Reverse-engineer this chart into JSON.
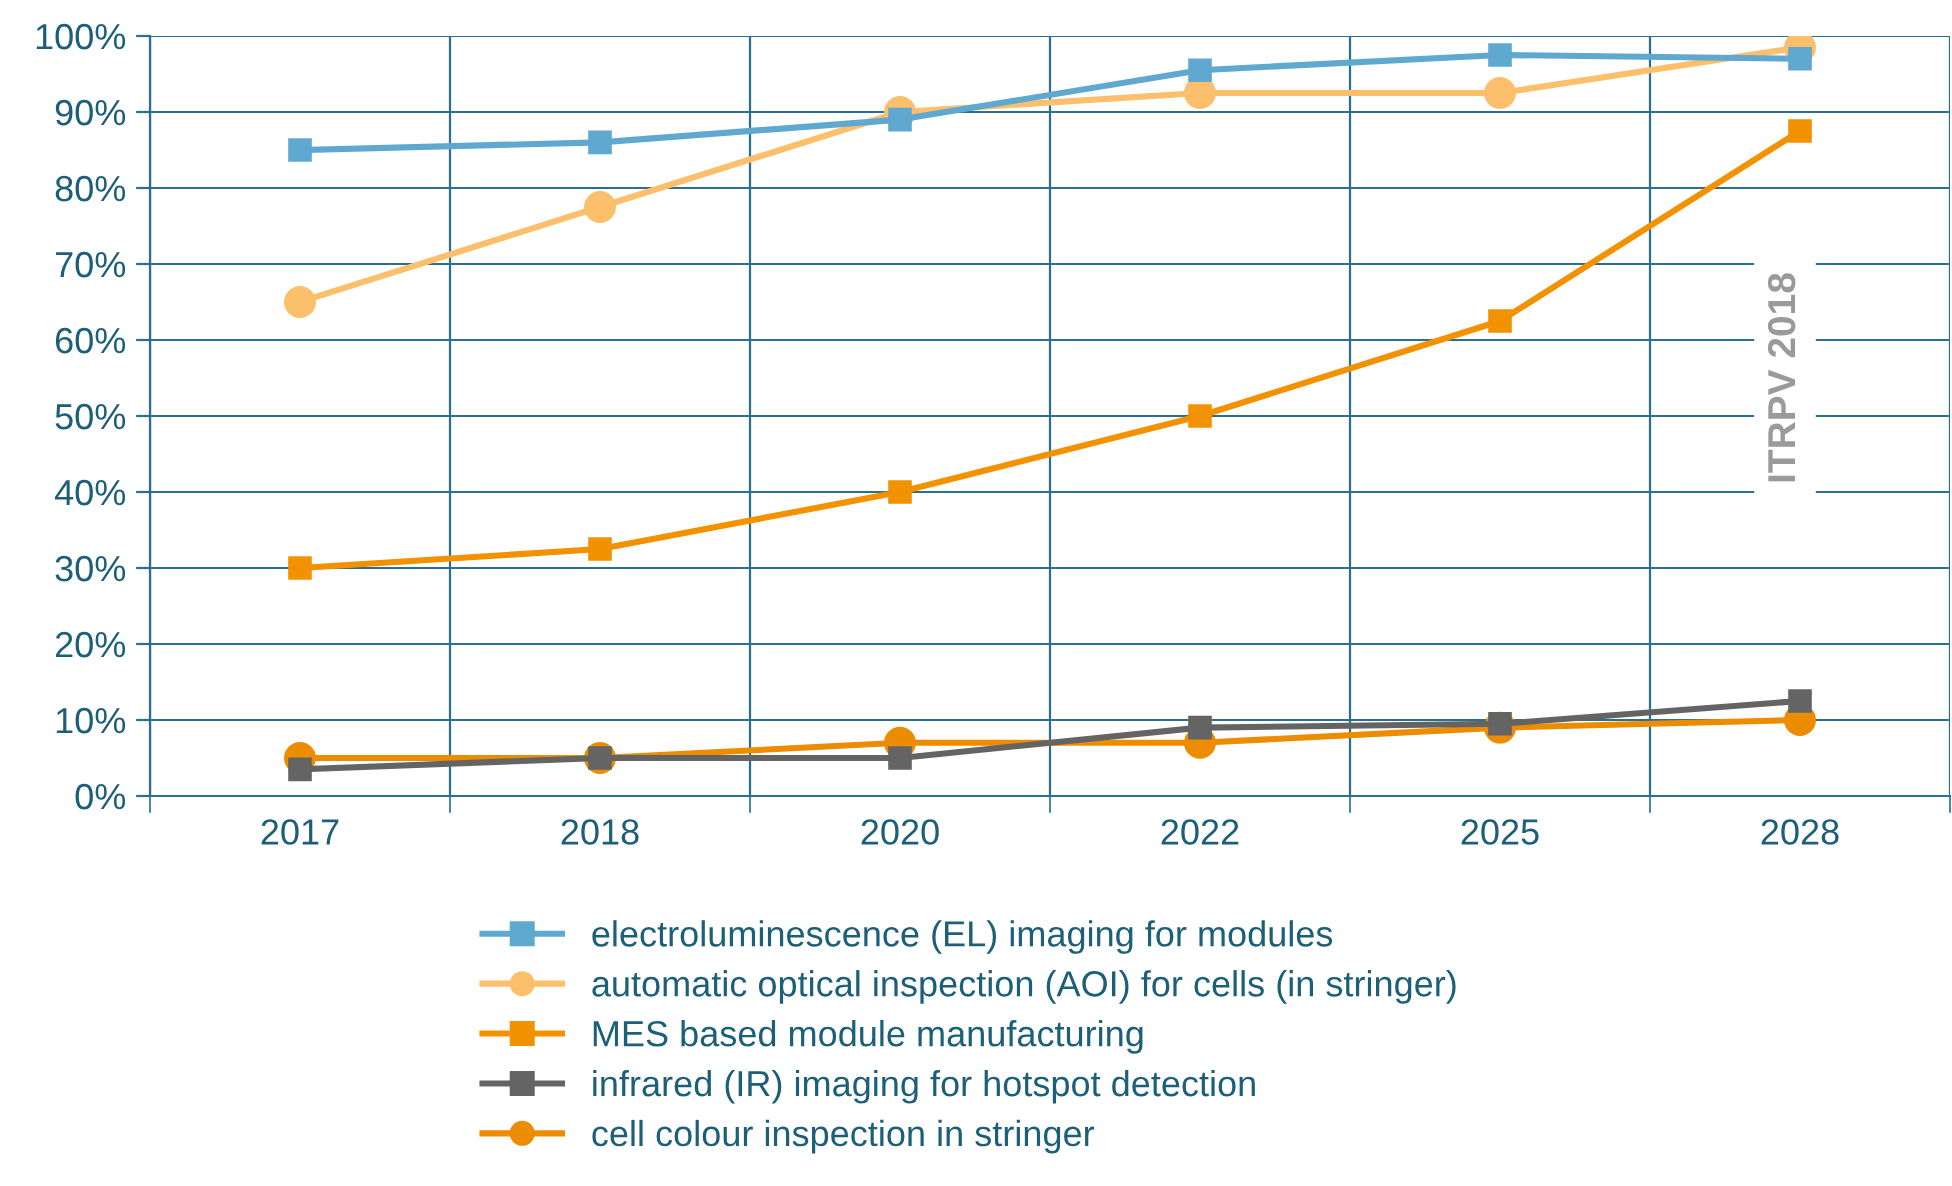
{
  "chart_data": {
    "type": "line",
    "categories": [
      "2017",
      "2018",
      "2020",
      "2022",
      "2025",
      "2028"
    ],
    "series": [
      {
        "name": "electroluminescence (EL) imaging for modules",
        "color": "#5fa8cf",
        "marker": "square",
        "values": [
          85,
          86,
          89,
          95.5,
          97.5,
          97
        ]
      },
      {
        "name": "automatic optical inspection (AOI) for cells (in stringer)",
        "color": "#fcbf6b",
        "marker": "circle",
        "values": [
          65,
          77.5,
          90,
          92.5,
          92.5,
          98.5
        ]
      },
      {
        "name": "MES based module manufacturing",
        "color": "#f39200",
        "marker": "square",
        "values": [
          30,
          32.5,
          40,
          50,
          62.5,
          87.5
        ]
      },
      {
        "name": "infrared (IR) imaging for hotspot detection",
        "color": "#646464",
        "marker": "square",
        "values": [
          3.5,
          5,
          5,
          9,
          9.5,
          12.5
        ]
      },
      {
        "name": "cell colour inspection in stringer",
        "color": "#ec8c00",
        "marker": "circle",
        "values": [
          5,
          5,
          7,
          7,
          9,
          10
        ]
      }
    ],
    "ylim": [
      0,
      100
    ],
    "yticks": [
      {
        "value": 0,
        "label": "0%"
      },
      {
        "value": 10,
        "label": "10%"
      },
      {
        "value": 20,
        "label": "20%"
      },
      {
        "value": 30,
        "label": "30%"
      },
      {
        "value": 40,
        "label": "40%"
      },
      {
        "value": 50,
        "label": "50%"
      },
      {
        "value": 60,
        "label": "60%"
      },
      {
        "value": 70,
        "label": "70%"
      },
      {
        "value": 80,
        "label": "80%"
      },
      {
        "value": 90,
        "label": "90%"
      },
      {
        "value": 100,
        "label": "100%"
      }
    ],
    "grid": true,
    "legend": "bottom",
    "line_style": "solid",
    "annotations": [
      "ITRPV 2018"
    ]
  }
}
